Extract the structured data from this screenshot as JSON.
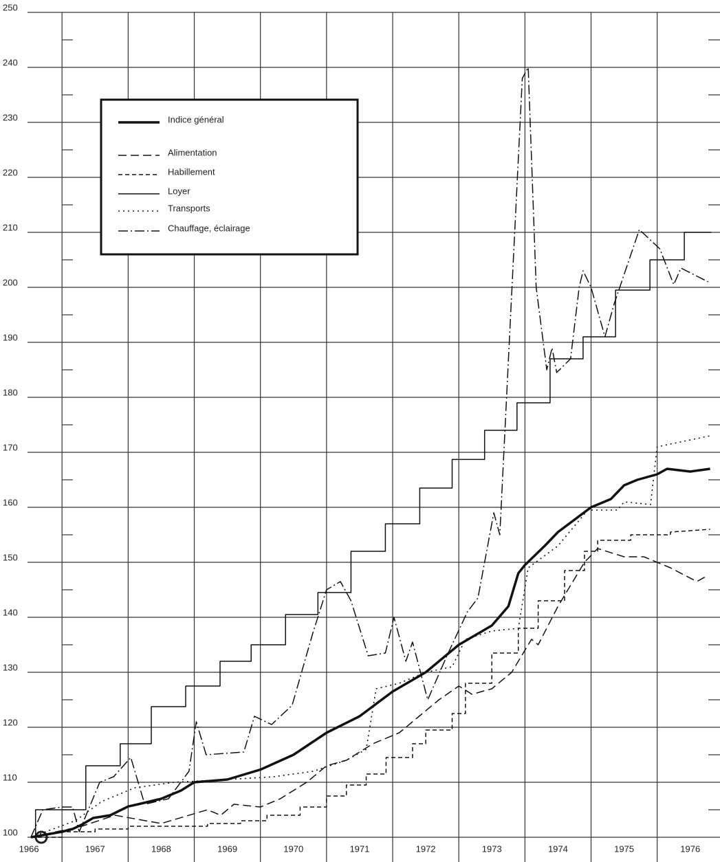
{
  "chart_data": {
    "type": "line",
    "xlim": [
      1966.53,
      1976.95
    ],
    "ylim": [
      100,
      250
    ],
    "yticks": [
      100,
      110,
      120,
      130,
      140,
      150,
      160,
      170,
      180,
      190,
      200,
      210,
      220,
      230,
      240,
      250
    ],
    "yticks_minor": [
      105,
      115,
      125,
      135,
      145,
      155,
      165,
      175,
      185,
      195,
      205,
      215,
      225,
      235,
      245
    ],
    "xticks": [
      {
        "value": 1966.5,
        "label": "1966"
      },
      {
        "value": 1967.5,
        "label": "1967"
      },
      {
        "value": 1968.5,
        "label": "1968"
      },
      {
        "value": 1969.5,
        "label": "1969"
      },
      {
        "value": 1970.5,
        "label": "1970"
      },
      {
        "value": 1971.5,
        "label": "1971"
      },
      {
        "value": 1972.5,
        "label": "1972"
      },
      {
        "value": 1973.5,
        "label": "1973"
      },
      {
        "value": 1974.5,
        "label": "1974"
      },
      {
        "value": 1975.5,
        "label": "1975"
      },
      {
        "value": 1976.5,
        "label": "1976"
      }
    ],
    "xgrid": [
      1967,
      1968,
      1969,
      1970,
      1971,
      1972,
      1973,
      1974,
      1975,
      1976
    ],
    "grid": true,
    "legend": "upper left",
    "series": [
      {
        "name": "Indice général",
        "color": "#111",
        "style": "solid",
        "width": 3.5,
        "x": [
          1966.53,
          1967.0,
          1967.16,
          1967.3,
          1967.47,
          1967.73,
          1968.0,
          1968.15,
          1968.5,
          1968.8,
          1969.0,
          1969.5,
          1970.0,
          1970.5,
          1971.0,
          1971.5,
          1972.0,
          1972.5,
          1973.0,
          1973.5,
          1973.75,
          1973.9,
          1974.0,
          1974.3,
          1974.5,
          1975.0,
          1975.3,
          1975.5,
          1975.7,
          1976.0,
          1976.15,
          1976.5,
          1976.8
        ],
        "values": [
          100,
          101,
          101.5,
          102.3,
          103.5,
          104,
          105.6,
          106,
          107,
          108.5,
          110,
          110.5,
          112.3,
          115,
          119,
          122,
          126.5,
          130,
          135,
          138.5,
          142,
          148,
          149.5,
          153,
          155.5,
          160,
          161.5,
          164,
          165,
          166,
          167,
          166.5,
          167
        ]
      },
      {
        "name": "Alimentation",
        "color": "#111",
        "style": "dashed",
        "width": 1.5,
        "x": [
          1966.53,
          1967.3,
          1967.8,
          1968.5,
          1969.2,
          1969.4,
          1969.6,
          1970.0,
          1970.3,
          1970.7,
          1971.0,
          1971.3,
          1971.7,
          1972.1,
          1972.4,
          1972.7,
          1973.0,
          1973.2,
          1973.5,
          1973.8,
          1974.1,
          1974.2,
          1974.5,
          1974.9,
          1975.1,
          1975.5,
          1975.8,
          1976.2,
          1976.6,
          1976.75
        ],
        "values": [
          100,
          102,
          104,
          102.5,
          105,
          104,
          106,
          105.5,
          107,
          110,
          113,
          114,
          117,
          119,
          122,
          125,
          127.5,
          126,
          127,
          130,
          136,
          135,
          142,
          150,
          152.5,
          151,
          151,
          149,
          146.5,
          147.5
        ]
      },
      {
        "name": "Habillement",
        "color": "#111",
        "style": "dashed-short",
        "width": 1.5,
        "x": [
          1966.53,
          1967.0,
          1967.0,
          1967.5,
          1967.5,
          1968.0,
          1968.0,
          1969.2,
          1969.2,
          1969.7,
          1969.7,
          1970.1,
          1970.1,
          1970.6,
          1970.6,
          1971.0,
          1971.0,
          1971.3,
          1971.3,
          1971.6,
          1971.6,
          1971.9,
          1971.9,
          1972.3,
          1972.3,
          1972.5,
          1972.5,
          1972.9,
          1972.9,
          1973.1,
          1973.1,
          1973.5,
          1973.5,
          1973.9,
          1973.9,
          1974.2,
          1974.2,
          1974.6,
          1974.6,
          1974.9,
          1974.9,
          1975.1,
          1975.1,
          1975.6,
          1975.6,
          1976.2,
          1976.2,
          1976.8
        ],
        "values": [
          100,
          100,
          101,
          101,
          101.5,
          101.5,
          102,
          102,
          102.5,
          102.5,
          103,
          103,
          104,
          104,
          105.5,
          105.5,
          107.5,
          107.5,
          109.5,
          109.5,
          111.5,
          111.5,
          114.5,
          114.5,
          117,
          117,
          119.5,
          119.5,
          122.5,
          122.5,
          128,
          128,
          133.5,
          133.5,
          138,
          138,
          143,
          143,
          148.5,
          148.5,
          152,
          152,
          154,
          154,
          155,
          155,
          155.5,
          156
        ]
      },
      {
        "name": "Loyer",
        "color": "#111",
        "style": "solid",
        "width": 1.5,
        "x": [
          1966.53,
          1966.6,
          1966.6,
          1967.36,
          1967.36,
          1967.88,
          1967.88,
          1968.35,
          1968.35,
          1968.87,
          1968.87,
          1969.39,
          1969.39,
          1969.86,
          1969.86,
          1970.38,
          1970.38,
          1970.87,
          1970.87,
          1971.37,
          1971.37,
          1971.89,
          1971.89,
          1972.41,
          1972.41,
          1972.9,
          1972.9,
          1973.39,
          1973.39,
          1973.88,
          1973.88,
          1974.38,
          1974.38,
          1974.88,
          1974.88,
          1975.37,
          1975.37,
          1975.89,
          1975.89,
          1976.41,
          1976.41,
          1976.82
        ],
        "values": [
          100,
          100,
          105,
          105,
          113,
          113,
          117,
          117,
          123.75,
          123.75,
          127.5,
          127.5,
          132,
          132,
          135,
          135,
          140.5,
          140.5,
          144.5,
          144.5,
          152,
          152,
          157,
          157,
          163.5,
          163.5,
          168.7,
          168.7,
          174,
          174,
          179,
          179,
          187,
          187,
          191,
          191,
          199.5,
          199.5,
          205,
          205,
          210,
          210
        ]
      },
      {
        "name": "Transports",
        "color": "#111",
        "style": "dotted",
        "width": 1.6,
        "x": [
          1966.53,
          1967.2,
          1967.6,
          1968.1,
          1968.7,
          1969.5,
          1970.2,
          1970.8,
          1971.3,
          1971.6,
          1971.75,
          1972.1,
          1972.5,
          1972.9,
          1973.1,
          1973.5,
          1973.9,
          1974.05,
          1974.5,
          1974.95,
          1975.4,
          1975.5,
          1975.9,
          1976.0,
          1976.8
        ],
        "values": [
          100,
          103,
          106.5,
          109,
          110,
          110.5,
          111,
          112,
          114,
          116,
          127,
          128,
          130,
          131,
          136,
          137.5,
          138,
          149,
          153,
          159.5,
          159.5,
          161,
          160.5,
          171,
          173
        ]
      },
      {
        "name": "Chauffage, éclairage",
        "color": "#111",
        "style": "dashdot",
        "width": 1.5,
        "x": [
          1966.53,
          1966.71,
          1967.0,
          1967.16,
          1967.26,
          1967.57,
          1967.78,
          1968.04,
          1968.25,
          1968.61,
          1968.92,
          1969.03,
          1969.18,
          1969.75,
          1969.91,
          1970.17,
          1970.48,
          1970.79,
          1971.0,
          1971.21,
          1971.37,
          1971.63,
          1971.89,
          1972.02,
          1972.2,
          1972.3,
          1972.53,
          1972.82,
          1973.13,
          1973.29,
          1973.53,
          1973.62,
          1973.96,
          1974.05,
          1974.17,
          1974.33,
          1974.41,
          1974.48,
          1974.69,
          1974.82,
          1974.88,
          1975.0,
          1975.21,
          1975.35,
          1975.73,
          1976.04,
          1976.25,
          1976.36,
          1976.77
        ],
        "values": [
          100,
          105,
          105.5,
          105.5,
          101,
          110,
          111,
          114.5,
          106,
          107,
          112,
          121,
          115,
          115.5,
          122,
          120.5,
          124,
          137,
          145,
          146.5,
          143,
          133,
          133.5,
          140,
          132,
          135.5,
          125,
          133,
          141,
          143.5,
          159,
          155,
          238,
          240,
          200,
          185,
          189,
          184.5,
          187,
          200,
          203,
          200,
          191,
          197,
          210.5,
          207,
          200.5,
          203.5,
          201
        ]
      }
    ]
  }
}
